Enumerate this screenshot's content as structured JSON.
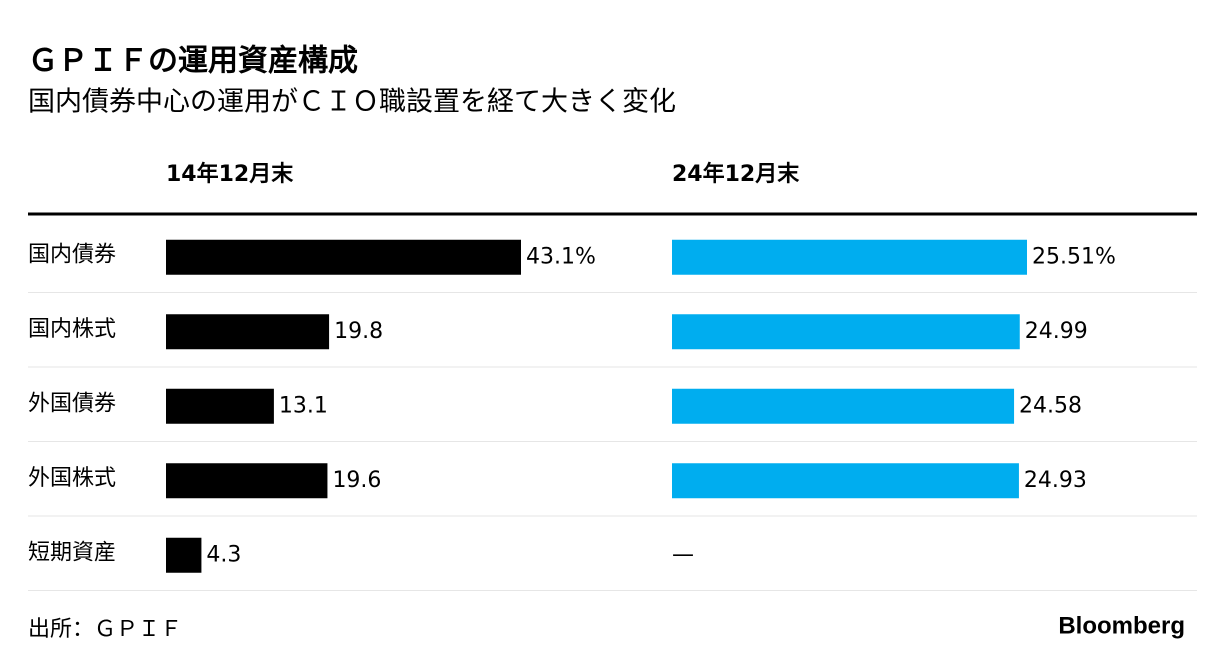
{
  "chart_data": {
    "type": "bar",
    "title": "ＧＰＩＦの運用資産構成",
    "subtitle": "国内債券中心の運用がＣＩＯ職設置を経て大きく変化",
    "categories": [
      "国内債券",
      "国内株式",
      "外国債券",
      "外国株式",
      "短期資産"
    ],
    "series": [
      {
        "name": "14年12月末",
        "color": "#000000",
        "xlim": [
          0,
          43.1
        ],
        "values": [
          43.1,
          19.8,
          13.1,
          19.6,
          4.3
        ],
        "value_labels": [
          "43.1%",
          "19.8",
          "13.1",
          "19.6",
          "4.3"
        ]
      },
      {
        "name": "24年12月末",
        "color": "#00adef",
        "xlim": [
          0,
          25.51
        ],
        "values": [
          25.51,
          24.99,
          24.58,
          24.93,
          null
        ],
        "value_labels": [
          "25.51%",
          "24.99",
          "24.58",
          "24.93",
          "—"
        ]
      }
    ],
    "source": "出所：ＧＰＩＦ",
    "brand": "Bloomberg"
  }
}
